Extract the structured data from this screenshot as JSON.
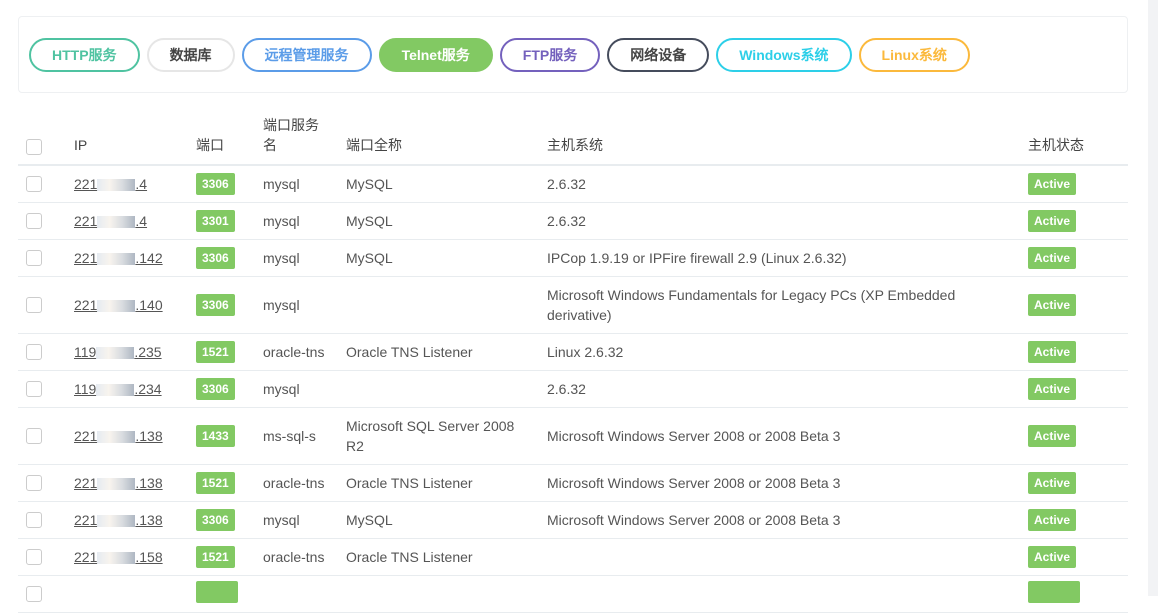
{
  "filters": [
    {
      "label": "HTTP服务",
      "color": "#4fc3a1",
      "filled": false
    },
    {
      "label": "数据库",
      "color": "#e6e6e6",
      "text": "#444",
      "filled": false
    },
    {
      "label": "远程管理服务",
      "color": "#5b9ce8",
      "filled": false
    },
    {
      "label": "Telnet服务",
      "color": "#82c963",
      "filled": true
    },
    {
      "label": "FTP服务",
      "color": "#7461bd",
      "filled": false
    },
    {
      "label": "网络设备",
      "color": "#454c5c",
      "text": "#444",
      "filled": false
    },
    {
      "label": "Windows系统",
      "color": "#2dcfe8",
      "filled": false
    },
    {
      "label": "Linux系统",
      "color": "#fbb93c",
      "filled": false
    }
  ],
  "table": {
    "headers": [
      "IP",
      "端口",
      "端口服务名",
      "端口全称",
      "主机系统",
      "主机状态"
    ],
    "rows": [
      {
        "ip_prefix": "221",
        "ip_suffix": ".4",
        "port": "3306",
        "service": "mysql",
        "fullname": "MySQL",
        "os": "2.6.32",
        "status": "Active"
      },
      {
        "ip_prefix": "221",
        "ip_suffix": ".4",
        "port": "3301",
        "service": "mysql",
        "fullname": "MySQL",
        "os": "2.6.32",
        "status": "Active"
      },
      {
        "ip_prefix": "221",
        "ip_suffix": ".142",
        "port": "3306",
        "service": "mysql",
        "fullname": "MySQL",
        "os": "IPCop 1.9.19 or IPFire firewall 2.9 (Linux 2.6.32)",
        "status": "Active"
      },
      {
        "ip_prefix": "221",
        "ip_suffix": ".140",
        "port": "3306",
        "service": "mysql",
        "fullname": "",
        "os": "Microsoft Windows Fundamentals for Legacy PCs (XP Embedded derivative)",
        "status": "Active",
        "tall": true
      },
      {
        "ip_prefix": "119",
        "ip_suffix": ".235",
        "port": "1521",
        "service": "oracle-tns",
        "fullname": "Oracle TNS Listener",
        "os": "Linux 2.6.32",
        "status": "Active"
      },
      {
        "ip_prefix": "119",
        "ip_suffix": ".234",
        "port": "3306",
        "service": "mysql",
        "fullname": "",
        "os": "2.6.32",
        "status": "Active"
      },
      {
        "ip_prefix": "221",
        "ip_suffix": ".138",
        "port": "1433",
        "service": "ms-sql-s",
        "fullname": "Microsoft SQL Server 2008 R2",
        "os": "Microsoft Windows Server 2008 or 2008 Beta 3",
        "status": "Active",
        "tall": true
      },
      {
        "ip_prefix": "221",
        "ip_suffix": ".138",
        "port": "1521",
        "service": "oracle-tns",
        "fullname": "Oracle TNS Listener",
        "os": "Microsoft Windows Server 2008 or 2008 Beta 3",
        "status": "Active"
      },
      {
        "ip_prefix": "221",
        "ip_suffix": ".138",
        "port": "3306",
        "service": "mysql",
        "fullname": "MySQL",
        "os": "Microsoft Windows Server 2008 or 2008 Beta 3",
        "status": "Active"
      },
      {
        "ip_prefix": "221",
        "ip_suffix": ".158",
        "port": "1521",
        "service": "oracle-tns",
        "fullname": "Oracle TNS Listener",
        "os": "",
        "status": "Active"
      }
    ]
  }
}
